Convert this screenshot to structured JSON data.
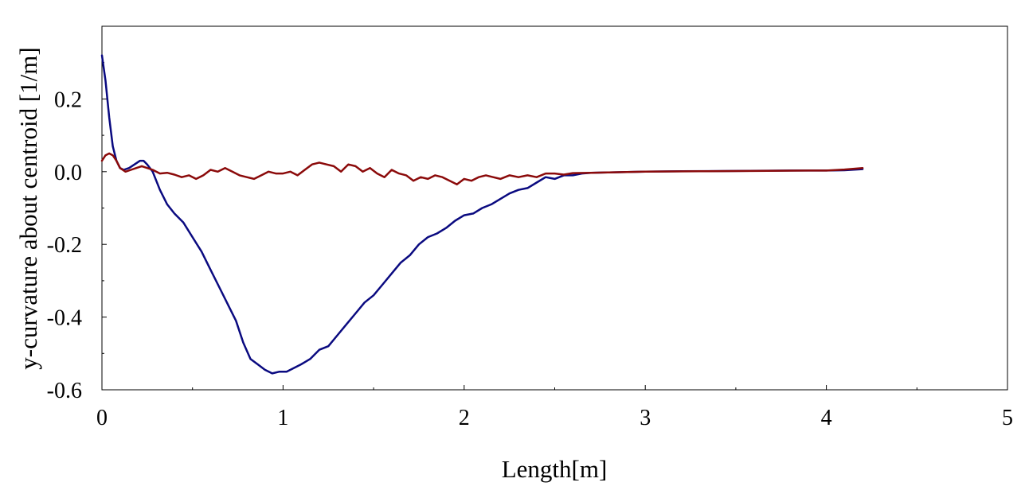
{
  "chart_data": {
    "type": "line",
    "title": "",
    "xlabel": "Length[m]",
    "ylabel": "y-curvature about centroid [1/m]",
    "xlim": [
      0,
      5
    ],
    "ylim": [
      -0.6,
      0.4
    ],
    "x_ticks": [
      0,
      1,
      2,
      3,
      4,
      5
    ],
    "x_tick_labels": [
      "0",
      "1",
      "2",
      "3",
      "4",
      "5"
    ],
    "y_ticks": [
      -0.6,
      -0.4,
      -0.2,
      0.0,
      0.2
    ],
    "y_tick_labels": [
      "-0.6",
      "-0.4",
      "-0.2",
      "0.0",
      "0.2"
    ],
    "grid": false,
    "legend": "none",
    "series": [
      {
        "color": "#0a0a80",
        "points": [
          [
            0.0,
            0.32
          ],
          [
            0.02,
            0.25
          ],
          [
            0.04,
            0.15
          ],
          [
            0.06,
            0.07
          ],
          [
            0.08,
            0.03
          ],
          [
            0.1,
            0.01
          ],
          [
            0.12,
            0.005
          ],
          [
            0.15,
            0.01
          ],
          [
            0.18,
            0.02
          ],
          [
            0.21,
            0.03
          ],
          [
            0.23,
            0.03
          ],
          [
            0.25,
            0.02
          ],
          [
            0.28,
            0.0
          ],
          [
            0.32,
            -0.05
          ],
          [
            0.36,
            -0.09
          ],
          [
            0.4,
            -0.115
          ],
          [
            0.45,
            -0.14
          ],
          [
            0.5,
            -0.18
          ],
          [
            0.55,
            -0.22
          ],
          [
            0.6,
            -0.27
          ],
          [
            0.65,
            -0.32
          ],
          [
            0.7,
            -0.37
          ],
          [
            0.74,
            -0.41
          ],
          [
            0.78,
            -0.47
          ],
          [
            0.82,
            -0.515
          ],
          [
            0.86,
            -0.53
          ],
          [
            0.9,
            -0.545
          ],
          [
            0.94,
            -0.555
          ],
          [
            0.98,
            -0.55
          ],
          [
            1.02,
            -0.55
          ],
          [
            1.06,
            -0.54
          ],
          [
            1.1,
            -0.53
          ],
          [
            1.15,
            -0.515
          ],
          [
            1.2,
            -0.49
          ],
          [
            1.25,
            -0.48
          ],
          [
            1.3,
            -0.45
          ],
          [
            1.35,
            -0.42
          ],
          [
            1.4,
            -0.39
          ],
          [
            1.45,
            -0.36
          ],
          [
            1.5,
            -0.34
          ],
          [
            1.55,
            -0.31
          ],
          [
            1.6,
            -0.28
          ],
          [
            1.65,
            -0.25
          ],
          [
            1.7,
            -0.23
          ],
          [
            1.75,
            -0.2
          ],
          [
            1.8,
            -0.18
          ],
          [
            1.85,
            -0.17
          ],
          [
            1.9,
            -0.155
          ],
          [
            1.95,
            -0.135
          ],
          [
            2.0,
            -0.12
          ],
          [
            2.05,
            -0.115
          ],
          [
            2.1,
            -0.1
          ],
          [
            2.15,
            -0.09
          ],
          [
            2.2,
            -0.075
          ],
          [
            2.25,
            -0.06
          ],
          [
            2.3,
            -0.05
          ],
          [
            2.35,
            -0.045
          ],
          [
            2.4,
            -0.03
          ],
          [
            2.45,
            -0.015
          ],
          [
            2.5,
            -0.02
          ],
          [
            2.55,
            -0.01
          ],
          [
            2.6,
            -0.01
          ],
          [
            2.65,
            -0.005
          ],
          [
            2.7,
            -0.003
          ],
          [
            2.8,
            -0.002
          ],
          [
            3.0,
            0.0
          ],
          [
            3.2,
            0.001
          ],
          [
            3.5,
            0.002
          ],
          [
            3.8,
            0.003
          ],
          [
            4.0,
            0.003
          ],
          [
            4.1,
            0.004
          ],
          [
            4.2,
            0.007
          ]
        ]
      },
      {
        "color": "#8b0a0a",
        "points": [
          [
            0.0,
            0.03
          ],
          [
            0.02,
            0.045
          ],
          [
            0.04,
            0.05
          ],
          [
            0.06,
            0.045
          ],
          [
            0.08,
            0.03
          ],
          [
            0.1,
            0.01
          ],
          [
            0.13,
            0.0
          ],
          [
            0.16,
            0.005
          ],
          [
            0.19,
            0.01
          ],
          [
            0.22,
            0.015
          ],
          [
            0.25,
            0.01
          ],
          [
            0.28,
            0.005
          ],
          [
            0.32,
            -0.005
          ],
          [
            0.36,
            -0.003
          ],
          [
            0.4,
            -0.008
          ],
          [
            0.44,
            -0.015
          ],
          [
            0.48,
            -0.01
          ],
          [
            0.52,
            -0.02
          ],
          [
            0.56,
            -0.01
          ],
          [
            0.6,
            0.005
          ],
          [
            0.64,
            0.0
          ],
          [
            0.68,
            0.01
          ],
          [
            0.72,
            0.0
          ],
          [
            0.76,
            -0.01
          ],
          [
            0.8,
            -0.015
          ],
          [
            0.84,
            -0.02
          ],
          [
            0.88,
            -0.01
          ],
          [
            0.92,
            0.0
          ],
          [
            0.96,
            -0.005
          ],
          [
            1.0,
            -0.005
          ],
          [
            1.04,
            0.0
          ],
          [
            1.08,
            -0.01
          ],
          [
            1.12,
            0.005
          ],
          [
            1.16,
            0.02
          ],
          [
            1.2,
            0.025
          ],
          [
            1.24,
            0.02
          ],
          [
            1.28,
            0.015
          ],
          [
            1.32,
            0.0
          ],
          [
            1.36,
            0.02
          ],
          [
            1.4,
            0.015
          ],
          [
            1.44,
            0.0
          ],
          [
            1.48,
            0.01
          ],
          [
            1.52,
            -0.005
          ],
          [
            1.56,
            -0.015
          ],
          [
            1.6,
            0.005
          ],
          [
            1.64,
            -0.005
          ],
          [
            1.68,
            -0.01
          ],
          [
            1.72,
            -0.025
          ],
          [
            1.76,
            -0.015
          ],
          [
            1.8,
            -0.02
          ],
          [
            1.84,
            -0.01
          ],
          [
            1.88,
            -0.015
          ],
          [
            1.92,
            -0.025
          ],
          [
            1.96,
            -0.035
          ],
          [
            2.0,
            -0.02
          ],
          [
            2.04,
            -0.025
          ],
          [
            2.08,
            -0.015
          ],
          [
            2.12,
            -0.01
          ],
          [
            2.16,
            -0.015
          ],
          [
            2.2,
            -0.02
          ],
          [
            2.25,
            -0.01
          ],
          [
            2.3,
            -0.015
          ],
          [
            2.35,
            -0.01
          ],
          [
            2.4,
            -0.015
          ],
          [
            2.45,
            -0.005
          ],
          [
            2.5,
            -0.005
          ],
          [
            2.55,
            -0.008
          ],
          [
            2.6,
            -0.004
          ],
          [
            2.7,
            -0.003
          ],
          [
            2.8,
            -0.002
          ],
          [
            3.0,
            0.0
          ],
          [
            3.3,
            0.001
          ],
          [
            3.6,
            0.002
          ],
          [
            3.9,
            0.003
          ],
          [
            4.0,
            0.003
          ],
          [
            4.1,
            0.006
          ],
          [
            4.2,
            0.01
          ]
        ]
      }
    ]
  }
}
